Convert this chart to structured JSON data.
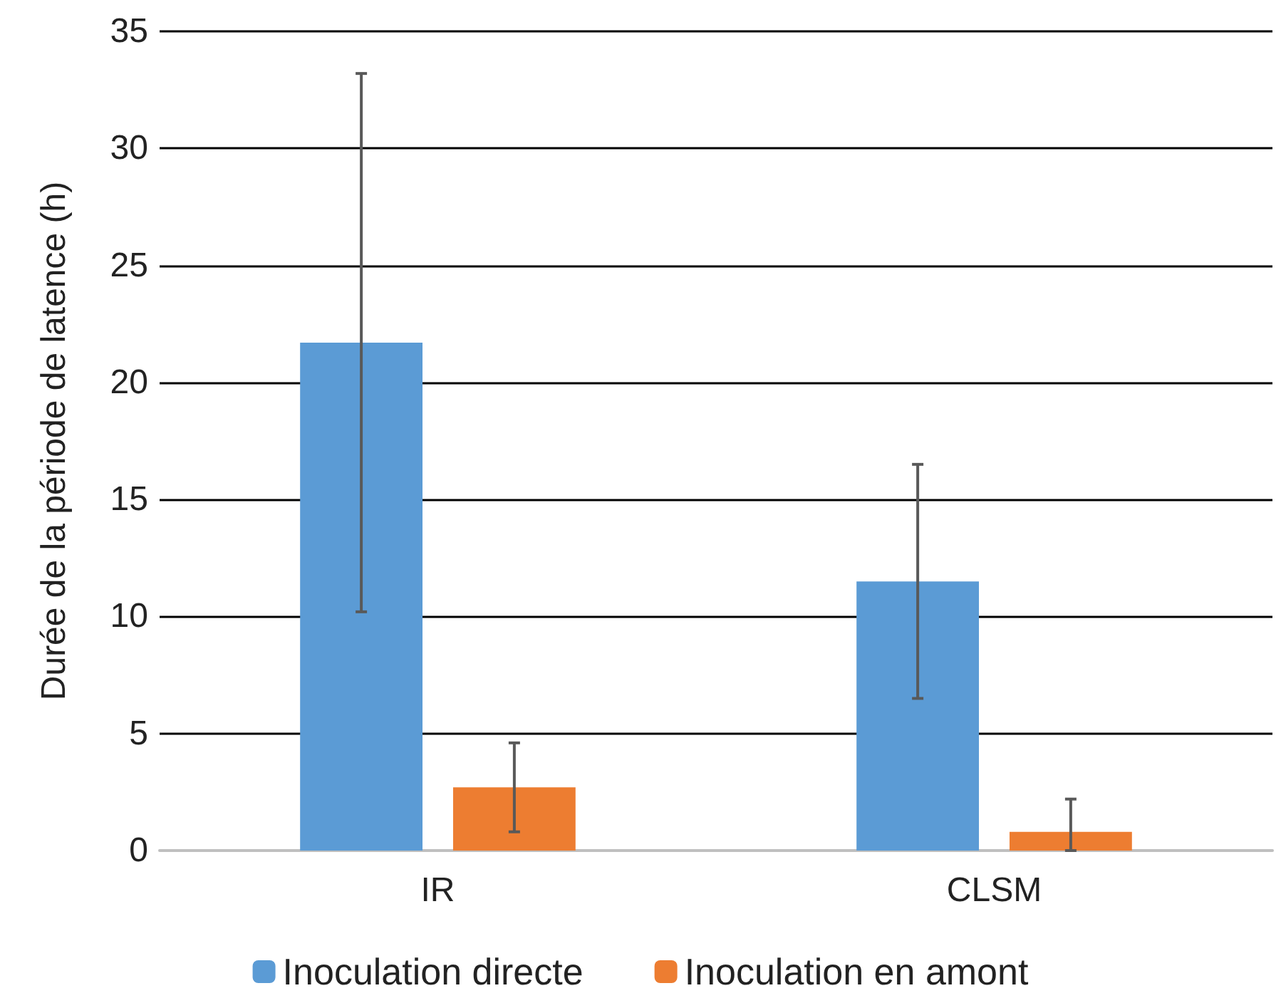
{
  "chart_data": {
    "type": "bar",
    "ylabel": "Durée de la période de latence (h)",
    "categories": [
      "IR",
      "CLSM"
    ],
    "series": [
      {
        "name": "Inoculation directe",
        "color": "#5b9bd5",
        "values": [
          21.7,
          11.5
        ],
        "errors": [
          11.5,
          5.0
        ]
      },
      {
        "name": "Inoculation en amont",
        "color": "#ed7d31",
        "values": [
          2.7,
          0.8
        ],
        "errors": [
          1.9,
          [
            0,
            2.2
          ]
        ]
      }
    ],
    "ylim": [
      0,
      35
    ],
    "yticks": [
      0,
      5,
      10,
      15,
      20,
      25,
      30,
      35
    ],
    "grid": "y",
    "legend": "bottom"
  }
}
